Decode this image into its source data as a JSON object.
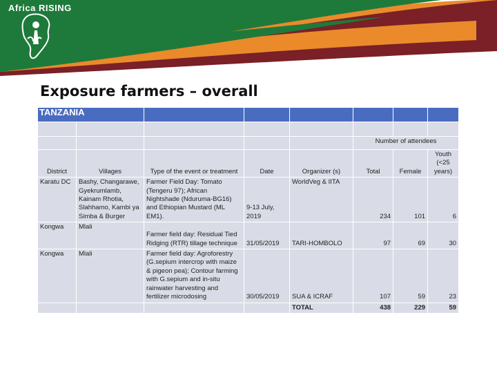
{
  "logo": {
    "text": "Africa RISING"
  },
  "colors": {
    "green": "#1e7a3a",
    "orange": "#ea8a2b",
    "maroon": "#7a2026",
    "table_header": "#4a6cc0",
    "table_cell": "#d9dce6"
  },
  "title": "Exposure farmers – overall",
  "table": {
    "country": "TANZANIA",
    "attendees_label": "Number of attendees",
    "columns": [
      "District",
      "Villages",
      "Type of the event or treatment",
      "Date",
      "Organizer (s)",
      "Total",
      "Female",
      "Youth (<25 years)"
    ],
    "rows": [
      {
        "district": "Karatu DC",
        "villages": "Bashy, Changarawe, Gyekrumlamb, Kainam Rhotia, Slahhamo, Kambi ya Simba & Burger",
        "event": "Farmer Field Day: Tomato (Tengeru 97); African Nightshade (Nduruma-BG16) and Ethiopian Mustard (ML EM1).",
        "date": "9-13 July, 2019",
        "organizer": "WorldVeg & IITA",
        "total": "234",
        "female": "101",
        "youth": "6"
      },
      {
        "district": "Kongwa",
        "villages": "Mlali",
        "event": "Farmer field day: Residual Tied Ridging (RTR) tillage technique",
        "date": "31/05/2019",
        "organizer": "TARI-HOMBOLO",
        "total": "97",
        "female": "69",
        "youth": "30"
      },
      {
        "district": "Kongwa",
        "villages": "Mlali",
        "event": "Farmer field day: Agroforestry (G.sepium intercrop with maize & pigeon pea); Contour farming with G.sepium and in-situ rainwater harvesting and fertilizer microdosing",
        "date": "30/05/2019",
        "organizer": "SUA & ICRAF",
        "total": "107",
        "female": "59",
        "youth": "23"
      }
    ],
    "totals": {
      "label": "TOTAL",
      "total": "438",
      "female": "229",
      "youth": "59"
    }
  }
}
